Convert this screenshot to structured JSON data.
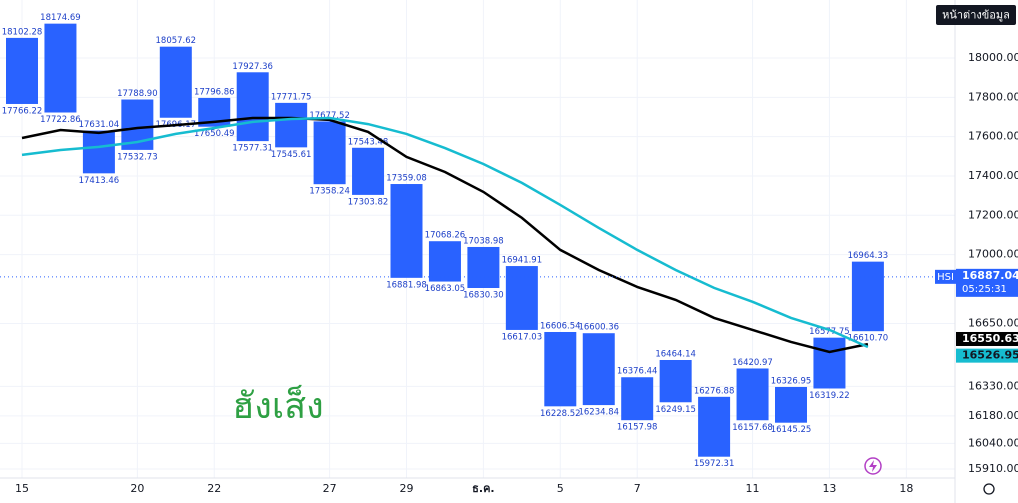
{
  "chart_data": {
    "type": "box",
    "symbol": "HSI",
    "watermark": "ฮังเส็ง",
    "data_window_button": "หน้าต่างข้อมูล",
    "categories": [
      "15",
      null,
      null,
      "20",
      null,
      "22",
      null,
      null,
      "27",
      null,
      "29",
      null,
      "ธ.ค.",
      null,
      "5",
      null,
      "7",
      null,
      null,
      "11",
      null,
      "13",
      null,
      "18"
    ],
    "color": "#2962ff",
    "top": [
      18102.28,
      18174.69,
      17631.04,
      17788.9,
      18057.62,
      17796.86,
      17927.36,
      17771.75,
      17677.52,
      17543.48,
      17359.08,
      17068.26,
      17038.98,
      16941.91,
      16606.54,
      16600.36,
      16376.44,
      16464.14,
      16276.88,
      16420.97,
      16326.95,
      16577.75,
      16964.33,
      null
    ],
    "top_labels": [
      "18102.28",
      "18174.69",
      "17631.04",
      "17788.90",
      "18057.62",
      "17796.86",
      "17927.36",
      "17771.75",
      "17677.52",
      "17543.48",
      "17359.08",
      "17068.26",
      "17038.98",
      "16941.91",
      "16606.54",
      "16600.36",
      "16376.44",
      "16464.14",
      "16276.88",
      "16420.97",
      "16326.95",
      "16577.75",
      "16964.33",
      null
    ],
    "bottom": [
      17766.22,
      17722.86,
      17413.46,
      17532.73,
      17696.17,
      17650.49,
      17577.31,
      17545.61,
      17358.24,
      17303.82,
      16881.98,
      16863.05,
      16830.3,
      16617.03,
      16228.52,
      16234.84,
      16157.98,
      16249.15,
      15972.31,
      16157.68,
      16145.25,
      16319.22,
      16610.7,
      null
    ],
    "bottom_labels": [
      "17766.22",
      "17722.86",
      "17413.46",
      "17532.73",
      "17696.17",
      "17650.49",
      "17577.31",
      "17545.61",
      "17358.24",
      "17303.82",
      "16881.98",
      "16863.05",
      "16830.30",
      "16617.03",
      "16228.52",
      "16234.84",
      "16157.98",
      "16249.15",
      "15972.31",
      "16157.68",
      "16145.25",
      "16319.22",
      "16610.70",
      null
    ],
    "lines": [
      {
        "color": "#000000",
        "values": [
          17593,
          17634,
          17619,
          17644,
          17659,
          17675,
          17695,
          17695,
          17685,
          17624,
          17497,
          17420,
          17319,
          17187,
          17024,
          16922,
          16836,
          16770,
          16678,
          16617,
          16556,
          16505,
          16545,
          null
        ],
        "last": 16550.63
      },
      {
        "color": "#16bcd0",
        "values": [
          17507,
          17532,
          17548,
          17573,
          17614,
          17644,
          17675,
          17690,
          17695,
          17664,
          17614,
          17542,
          17461,
          17365,
          17253,
          17136,
          17024,
          16922,
          16831,
          16760,
          16678,
          16617,
          16530,
          null
        ],
        "last": 16526.95
      }
    ],
    "last_price": 16887.04,
    "countdown": "05:25:31",
    "ylim": [
      15864,
      18295
    ],
    "yticks": [
      {
        "value": 18000,
        "label": "18000.00"
      },
      {
        "value": 17800,
        "label": "17800.00"
      },
      {
        "value": 17600,
        "label": "17600.00"
      },
      {
        "value": 17400,
        "label": "17400.00"
      },
      {
        "value": 17200,
        "label": "17200.00"
      },
      {
        "value": 17000,
        "label": "17000.00"
      },
      {
        "value": 16650,
        "label": "16650.00"
      },
      {
        "value": 16330,
        "label": "16330.00"
      },
      {
        "value": 16180,
        "label": "16180.00"
      },
      {
        "value": 16040,
        "label": "16040.00"
      },
      {
        "value": 15910,
        "label": "15910.00"
      }
    ],
    "grid": true
  }
}
